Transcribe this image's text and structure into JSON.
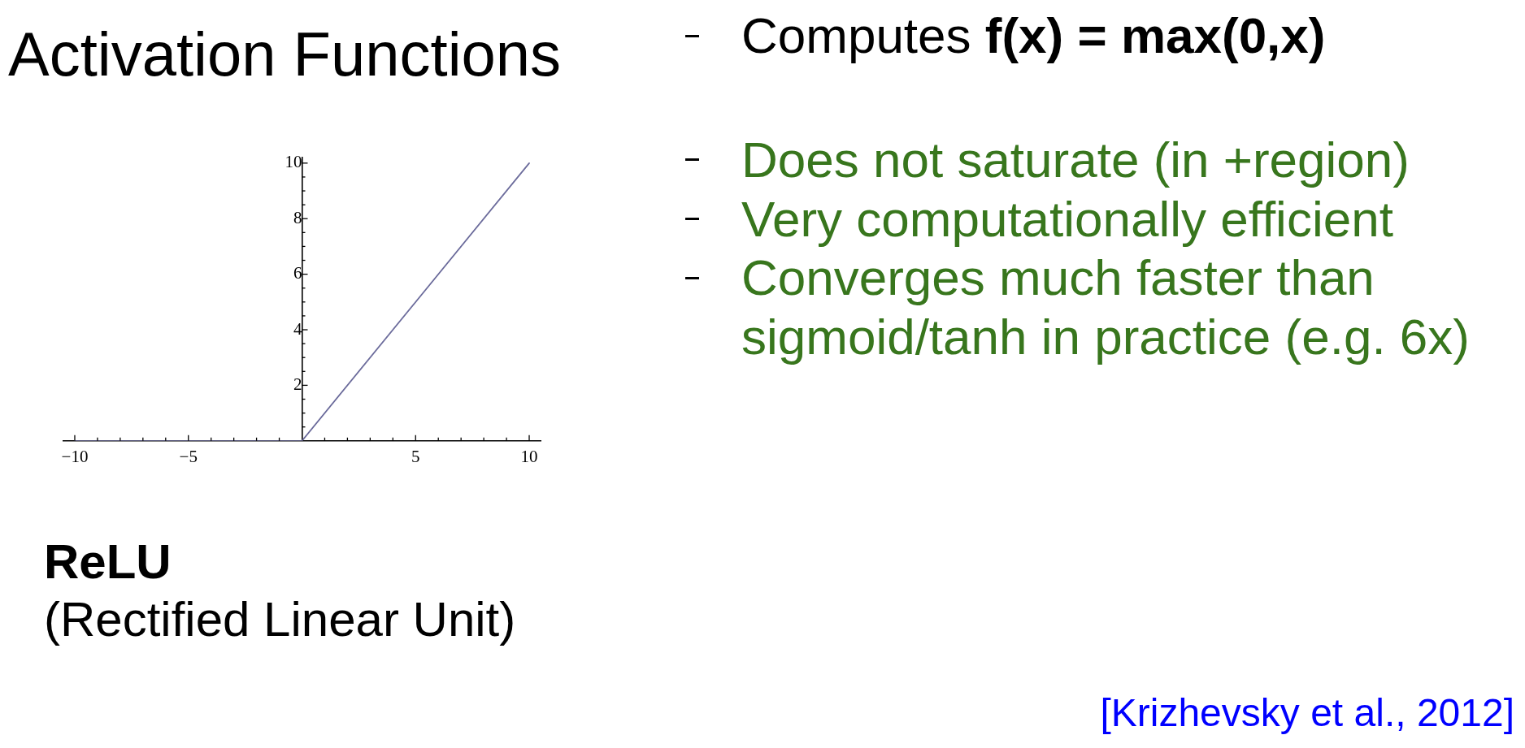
{
  "chart_data": {
    "type": "line",
    "title": "Activation Functions",
    "annotations": [
      "Computes",
      "f(x) = max(0,x)",
      "Does not saturate (in +region)",
      "Very computationally efficient",
      "Converges much faster than sigmoid/tanh in practice (e.g. 6x)",
      "ReLU",
      "(Rectified Linear Unit)",
      "[Krizhevsky et al., 2012]"
    ],
    "x": [
      -10,
      0,
      10
    ],
    "values": [
      0,
      0,
      10
    ],
    "color": "#6b6b9b",
    "marker": "none",
    "xlim": [
      -10.5,
      10.5
    ],
    "ylim": [
      0,
      10.2
    ],
    "xticks": [
      {
        "value": -10,
        "label": "−10"
      },
      {
        "value": -9,
        "label": null
      },
      {
        "value": -8,
        "label": null
      },
      {
        "value": -7,
        "label": null
      },
      {
        "value": -6,
        "label": null
      },
      {
        "value": -5,
        "label": "−5"
      },
      {
        "value": -4,
        "label": null
      },
      {
        "value": -3,
        "label": null
      },
      {
        "value": -2,
        "label": null
      },
      {
        "value": -1,
        "label": null
      },
      {
        "value": 1,
        "label": null
      },
      {
        "value": 2,
        "label": null
      },
      {
        "value": 3,
        "label": null
      },
      {
        "value": 4,
        "label": null
      },
      5,
      {
        "value": 6,
        "label": null
      },
      {
        "value": 7,
        "label": null
      },
      {
        "value": 8,
        "label": null
      },
      {
        "value": 9,
        "label": null
      },
      10
    ],
    "yticks": [
      {
        "value": 0.5,
        "label": null
      },
      {
        "value": 1,
        "label": null
      },
      {
        "value": 1.5,
        "label": null
      },
      2,
      {
        "value": 2.5,
        "label": null
      },
      {
        "value": 3,
        "label": null
      },
      {
        "value": 3.5,
        "label": null
      },
      4,
      {
        "value": 4.5,
        "label": null
      },
      {
        "value": 5,
        "label": null
      },
      {
        "value": 5.5,
        "label": null
      },
      6,
      {
        "value": 6.5,
        "label": null
      },
      {
        "value": 7,
        "label": null
      },
      {
        "value": 7.5,
        "label": null
      },
      8,
      {
        "value": 8.5,
        "label": null
      },
      {
        "value": 9,
        "label": null
      },
      {
        "value": 9.5,
        "label": null
      },
      10
    ]
  }
}
